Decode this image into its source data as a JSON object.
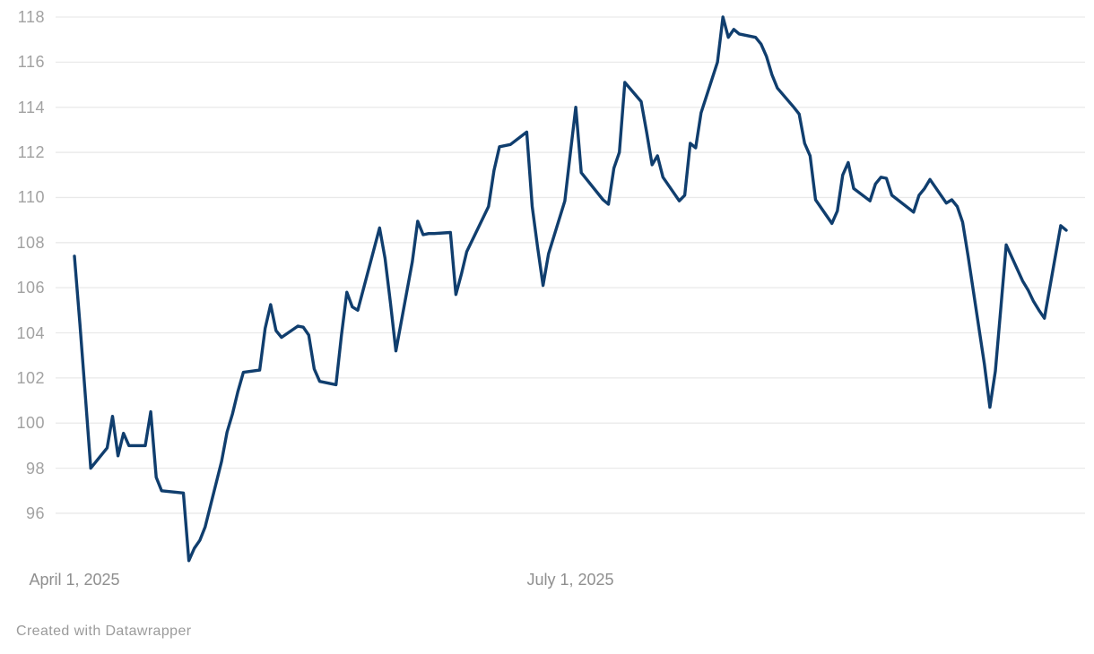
{
  "chart_data": {
    "type": "line",
    "title": "",
    "xlabel": "",
    "ylabel": "",
    "grid": "horizontal-only",
    "legend": "none",
    "line_color": "#103e6e",
    "gridline_color": "#e9e9e9",
    "background_color": "#ffffff",
    "y_axis": {
      "ticks": [
        96,
        98,
        100,
        102,
        104,
        106,
        108,
        110,
        112,
        114,
        116,
        118
      ],
      "ylim": [
        93.5,
        118.0
      ],
      "tick_color": "#a2a2a2"
    },
    "x_axis": {
      "start_date": "2025-04-01",
      "end_date": "2025-09-30",
      "ticks": [
        {
          "date": "2025-04-01",
          "label": "April 1, 2025"
        },
        {
          "date": "2025-07-01",
          "label": "July 1, 2025"
        }
      ],
      "tick_color": "#8f8f8f"
    },
    "points": [
      [
        "2025-04-01",
        107.4
      ],
      [
        "2025-04-02",
        104.4
      ],
      [
        "2025-04-03",
        101.2
      ],
      [
        "2025-04-04",
        98.0
      ],
      [
        "2025-04-07",
        98.9
      ],
      [
        "2025-04-08",
        100.3
      ],
      [
        "2025-04-09",
        98.55
      ],
      [
        "2025-04-10",
        99.55
      ],
      [
        "2025-04-11",
        99.0
      ],
      [
        "2025-04-14",
        99.0
      ],
      [
        "2025-04-15",
        100.5
      ],
      [
        "2025-04-16",
        97.6
      ],
      [
        "2025-04-17",
        97.0
      ],
      [
        "2025-04-21",
        96.9
      ],
      [
        "2025-04-22",
        93.9
      ],
      [
        "2025-04-23",
        94.45
      ],
      [
        "2025-04-24",
        94.8
      ],
      [
        "2025-04-25",
        95.4
      ],
      [
        "2025-04-28",
        98.3
      ],
      [
        "2025-04-29",
        99.6
      ],
      [
        "2025-04-30",
        100.4
      ],
      [
        "2025-05-01",
        101.4
      ],
      [
        "2025-05-02",
        102.25
      ],
      [
        "2025-05-05",
        102.35
      ],
      [
        "2025-05-06",
        104.2
      ],
      [
        "2025-05-07",
        105.25
      ],
      [
        "2025-05-08",
        104.1
      ],
      [
        "2025-05-09",
        103.8
      ],
      [
        "2025-05-12",
        104.3
      ],
      [
        "2025-05-13",
        104.25
      ],
      [
        "2025-05-14",
        103.9
      ],
      [
        "2025-05-15",
        102.4
      ],
      [
        "2025-05-16",
        101.85
      ],
      [
        "2025-05-19",
        101.7
      ],
      [
        "2025-05-20",
        103.9
      ],
      [
        "2025-05-21",
        105.8
      ],
      [
        "2025-05-22",
        105.15
      ],
      [
        "2025-05-23",
        105.0
      ],
      [
        "2025-05-27",
        108.65
      ],
      [
        "2025-05-28",
        107.3
      ],
      [
        "2025-05-29",
        105.3
      ],
      [
        "2025-05-30",
        103.2
      ],
      [
        "2025-06-02",
        107.15
      ],
      [
        "2025-06-03",
        108.95
      ],
      [
        "2025-06-04",
        108.35
      ],
      [
        "2025-06-05",
        108.4
      ],
      [
        "2025-06-06",
        108.4
      ],
      [
        "2025-06-09",
        108.45
      ],
      [
        "2025-06-10",
        105.7
      ],
      [
        "2025-06-11",
        106.6
      ],
      [
        "2025-06-12",
        107.6
      ],
      [
        "2025-06-13",
        108.1
      ],
      [
        "2025-06-16",
        109.6
      ],
      [
        "2025-06-17",
        111.2
      ],
      [
        "2025-06-18",
        112.25
      ],
      [
        "2025-06-20",
        112.35
      ],
      [
        "2025-06-23",
        112.9
      ],
      [
        "2025-06-24",
        109.6
      ],
      [
        "2025-06-25",
        107.8
      ],
      [
        "2025-06-26",
        106.1
      ],
      [
        "2025-06-27",
        107.5
      ],
      [
        "2025-06-30",
        109.85
      ],
      [
        "2025-07-01",
        111.95
      ],
      [
        "2025-07-02",
        114.0
      ],
      [
        "2025-07-03",
        111.1
      ],
      [
        "2025-07-07",
        109.9
      ],
      [
        "2025-07-08",
        109.7
      ],
      [
        "2025-07-09",
        111.3
      ],
      [
        "2025-07-10",
        112.0
      ],
      [
        "2025-07-11",
        115.1
      ],
      [
        "2025-07-14",
        114.25
      ],
      [
        "2025-07-15",
        112.9
      ],
      [
        "2025-07-16",
        111.45
      ],
      [
        "2025-07-17",
        111.85
      ],
      [
        "2025-07-18",
        110.9
      ],
      [
        "2025-07-21",
        109.85
      ],
      [
        "2025-07-22",
        110.1
      ],
      [
        "2025-07-23",
        112.4
      ],
      [
        "2025-07-24",
        112.2
      ],
      [
        "2025-07-25",
        113.75
      ],
      [
        "2025-07-28",
        116.0
      ],
      [
        "2025-07-29",
        118.0
      ],
      [
        "2025-07-30",
        117.1
      ],
      [
        "2025-07-31",
        117.45
      ],
      [
        "2025-08-01",
        117.25
      ],
      [
        "2025-08-04",
        117.1
      ],
      [
        "2025-08-05",
        116.8
      ],
      [
        "2025-08-06",
        116.25
      ],
      [
        "2025-08-07",
        115.45
      ],
      [
        "2025-08-08",
        114.85
      ],
      [
        "2025-08-11",
        114.0
      ],
      [
        "2025-08-12",
        113.7
      ],
      [
        "2025-08-13",
        112.4
      ],
      [
        "2025-08-14",
        111.85
      ],
      [
        "2025-08-15",
        109.9
      ],
      [
        "2025-08-18",
        108.85
      ],
      [
        "2025-08-19",
        109.4
      ],
      [
        "2025-08-20",
        111.0
      ],
      [
        "2025-08-21",
        111.55
      ],
      [
        "2025-08-22",
        110.4
      ],
      [
        "2025-08-25",
        109.85
      ],
      [
        "2025-08-26",
        110.6
      ],
      [
        "2025-08-27",
        110.9
      ],
      [
        "2025-08-28",
        110.85
      ],
      [
        "2025-08-29",
        110.1
      ],
      [
        "2025-09-02",
        109.35
      ],
      [
        "2025-09-03",
        110.1
      ],
      [
        "2025-09-04",
        110.4
      ],
      [
        "2025-09-05",
        110.8
      ],
      [
        "2025-09-08",
        109.75
      ],
      [
        "2025-09-09",
        109.9
      ],
      [
        "2025-09-10",
        109.6
      ],
      [
        "2025-09-11",
        108.9
      ],
      [
        "2025-09-12",
        107.4
      ],
      [
        "2025-09-15",
        102.6
      ],
      [
        "2025-09-16",
        100.7
      ],
      [
        "2025-09-17",
        102.3
      ],
      [
        "2025-09-18",
        105.1
      ],
      [
        "2025-09-19",
        107.9
      ],
      [
        "2025-09-22",
        106.3
      ],
      [
        "2025-09-23",
        105.9
      ],
      [
        "2025-09-24",
        105.4
      ],
      [
        "2025-09-25",
        105.0
      ],
      [
        "2025-09-26",
        104.65
      ],
      [
        "2025-09-29",
        108.75
      ],
      [
        "2025-09-30",
        108.55
      ]
    ]
  },
  "footer": {
    "attribution": "Created with Datawrapper"
  }
}
